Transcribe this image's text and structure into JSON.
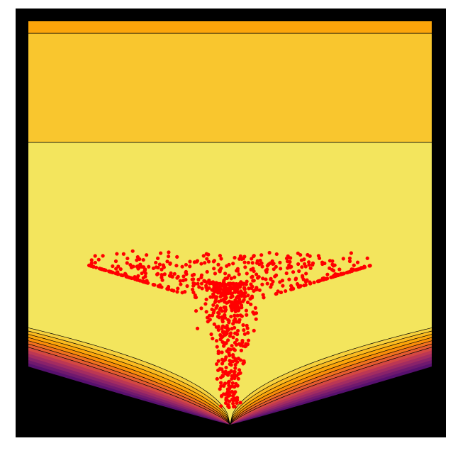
{
  "chart_data": {
    "type": "contour-scatter",
    "title": "",
    "xlabel": "",
    "ylabel": "",
    "xlim": [
      -1,
      1
    ],
    "ylim": [
      -1,
      1
    ],
    "axes_visible": false,
    "grid": false,
    "legend": "none",
    "colormap": "inferno",
    "background_color": "#000000",
    "frame_color": "#000000",
    "contour_line_color": "#000000",
    "fill_levels": [
      {
        "name": "level-top",
        "color": "#FCA50A",
        "y_range": [
          0.94,
          1.0
        ]
      },
      {
        "name": "level-upper",
        "color": "#F9C62E",
        "y_range": [
          0.4,
          0.94
        ]
      },
      {
        "name": "level-mid",
        "color": "#F3E55D",
        "y_range": [
          -0.52,
          0.4
        ]
      }
    ],
    "funnel": {
      "vertex_x": 0.0,
      "vertex_y": -1.0,
      "boundary_y_at_edges": -0.52,
      "contour_count": 12,
      "band_colors": [
        "#F7D13D",
        "#FBBA1F",
        "#FCA50A",
        "#F98C0A",
        "#F1711F",
        "#E55C30",
        "#D44842",
        "#BC3754",
        "#A32C61",
        "#89226A",
        "#6F196E",
        "#57106E",
        "#3B0F70",
        "#1F0C48"
      ]
    },
    "points": {
      "color": "#FF0000",
      "count": 900,
      "seed": 7,
      "distribution": "funnel-sample"
    }
  }
}
